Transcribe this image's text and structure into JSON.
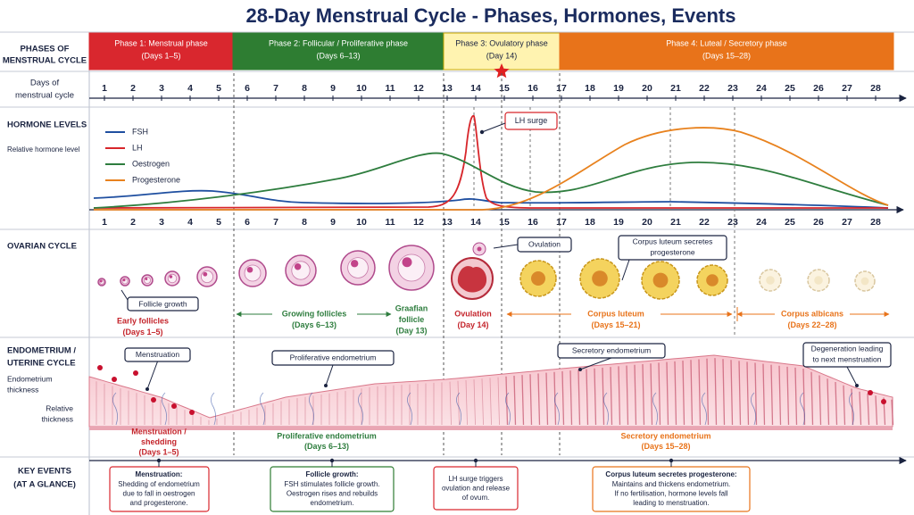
{
  "title": "28-Day Menstrual Cycle - Phases, Hormones, Events",
  "row_labels": {
    "phases": [
      "PHASES OF",
      "MENSTRUAL CYCLE"
    ],
    "days": [
      "Days of",
      "menstrual cycle"
    ],
    "hormones": [
      "HORMONE LEVELS"
    ],
    "ovarian": [
      "OVARIAN CYCLE"
    ],
    "endometrium": [
      "ENDOMETRIUM /",
      "UTERINE CYCLE"
    ],
    "key_events": [
      "KEY EVENTS",
      "(AT A GLANCE)"
    ]
  },
  "phases": [
    {
      "name": "Phase 1: Menstrual phase",
      "days": "(Days 1–5)"
    },
    {
      "name": "Phase 2: Follicular / Proliferative phase",
      "days": "(Days 6–13)"
    },
    {
      "name": "Phase 3: Ovulatory phase",
      "days": "(Day 14)"
    },
    {
      "name": "Phase 4: Luteal / Secretory phase",
      "days": "(Days 15–28)"
    }
  ],
  "days": [
    1,
    2,
    3,
    4,
    5,
    6,
    7,
    8,
    9,
    10,
    11,
    12,
    13,
    14,
    15,
    16,
    17,
    18,
    19,
    20,
    21,
    22,
    23,
    24,
    25,
    26,
    27,
    28
  ],
  "hormones": {
    "axis_label": "Relative hormone level",
    "legend": [
      {
        "name": "FSH",
        "color": "#1f4fa0"
      },
      {
        "name": "LH",
        "color": "#d7262b"
      },
      {
        "name": "Oestrogen",
        "color": "#2e7d3e"
      },
      {
        "name": "Progesterone",
        "color": "#e8821e"
      }
    ],
    "annotation": "LH surge"
  },
  "ovarian": {
    "callouts": [
      [
        "Follicle growth"
      ],
      [
        "Ovulation"
      ],
      [
        "Corpus luteum secretes",
        "progesterone"
      ]
    ],
    "stages": [
      {
        "lines": [
          "Early follicles",
          "(Days 1–5)"
        ]
      },
      {
        "lines": [
          "Growing follicles",
          "(Days 6–13)"
        ]
      },
      {
        "lines": [
          "Graafian",
          "follicle",
          "(Day 13)"
        ]
      },
      {
        "lines": [
          "Ovulation",
          "(Day 14)"
        ]
      },
      {
        "lines": [
          "Corpus luteum",
          "(Days 15–21)"
        ]
      },
      {
        "lines": [
          "Corpus albicans",
          "(Days 22–28)"
        ]
      }
    ]
  },
  "endometrium": {
    "side_labels": [
      [
        "Endometrium",
        "thickness"
      ],
      [
        "Relative",
        "thickness"
      ]
    ],
    "callouts": [
      [
        "Menstruation"
      ],
      [
        "Proliferative endometrium"
      ],
      [
        "Secretory endometrium"
      ],
      [
        "Degeneration leading",
        "to next menstruation"
      ]
    ],
    "stages": [
      {
        "lines": [
          "Menstruation /",
          "shedding",
          "(Days 1–5)"
        ]
      },
      {
        "lines": [
          "Proliferative endometrium",
          "(Days 6–13)"
        ]
      },
      {
        "lines": [
          "Secretory endometrium",
          "(Days 15–28)"
        ]
      }
    ]
  },
  "key_events": [
    {
      "title": "Menstruation:",
      "lines": [
        "Shedding of endometrium",
        "due to fall in oestrogen",
        "and progesterone."
      ]
    },
    {
      "title": "Follicle growth:",
      "lines": [
        "FSH stimulates follicle growth.",
        "Oestrogen rises and rebuilds",
        "endometrium."
      ]
    },
    {
      "lines": [
        "LH surge triggers",
        "ovulation and release",
        "of ovum."
      ]
    },
    {
      "title": "Corpus luteum secretes progesterone:",
      "lines": [
        "Maintains and thickens endometrium.",
        "If no fertilisation, hormone levels fall",
        "leading to menstruation."
      ]
    }
  ]
}
